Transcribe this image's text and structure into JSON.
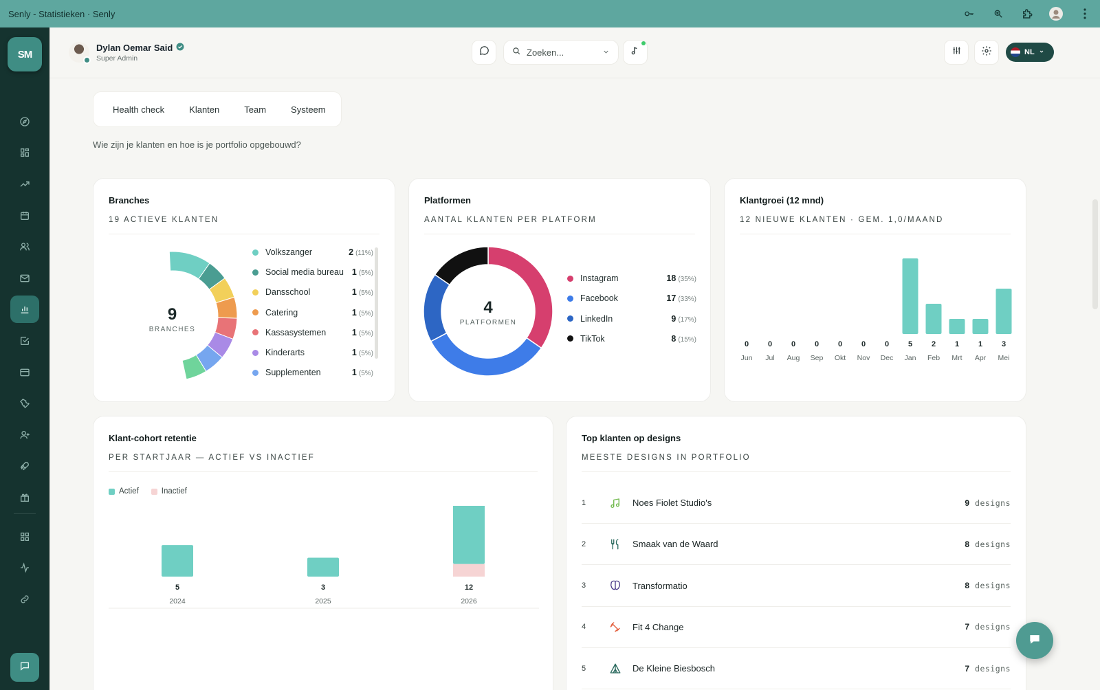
{
  "window": {
    "title": "Senly - Statistieken · Senly"
  },
  "sidebar": {
    "logo": "SM",
    "items": [
      {
        "icon": "compass-icon"
      },
      {
        "icon": "grid-icon"
      },
      {
        "icon": "trending-up-icon"
      },
      {
        "icon": "calendar-icon"
      },
      {
        "icon": "users-icon"
      },
      {
        "icon": "mail-icon"
      },
      {
        "icon": "bar-chart-icon",
        "active": true
      },
      {
        "icon": "check-square-icon"
      },
      {
        "icon": "credit-card-icon"
      },
      {
        "icon": "wrench-icon"
      },
      {
        "icon": "user-plus-icon"
      },
      {
        "icon": "rocket-icon"
      },
      {
        "icon": "gift-icon"
      }
    ],
    "bottom_items": [
      {
        "icon": "apps-icon"
      },
      {
        "icon": "activity-icon"
      },
      {
        "icon": "link-icon"
      }
    ]
  },
  "header": {
    "user_name": "Dylan Oemar Said",
    "user_role": "Super Admin",
    "search_placeholder": "Zoeken...",
    "language": "NL"
  },
  "tabs": [
    "Health check",
    "Klanten",
    "Team",
    "Systeem"
  ],
  "intro": "Wie zijn je klanten en hoe is je portfolio opgebouwd?",
  "branches": {
    "title": "Branches",
    "subtitle": "19 actieve klanten",
    "center_value": "9",
    "center_label": "BRANCHES",
    "items": [
      {
        "label": "Volkszanger",
        "value": "2",
        "pct": "(11%)",
        "color": "#6fcfc3"
      },
      {
        "label": "Social media bureau",
        "value": "1",
        "pct": "(5%)",
        "color": "#4a9d92"
      },
      {
        "label": "Dansschool",
        "value": "1",
        "pct": "(5%)",
        "color": "#f2d05a"
      },
      {
        "label": "Catering",
        "value": "1",
        "pct": "(5%)",
        "color": "#ee9b4e"
      },
      {
        "label": "Kassasystemen",
        "value": "1",
        "pct": "(5%)",
        "color": "#e87377"
      },
      {
        "label": "Kinderarts",
        "value": "1",
        "pct": "(5%)",
        "color": "#a98ae6"
      },
      {
        "label": "Supplementen",
        "value": "1",
        "pct": "(5%)",
        "color": "#76a6ef"
      }
    ]
  },
  "platformen": {
    "title": "Platformen",
    "subtitle": "Aantal klanten per platform",
    "center_value": "4",
    "center_label": "PLATFORMEN",
    "items": [
      {
        "label": "Instagram",
        "value": "18",
        "pct": "(35%)",
        "color": "#d63f6e"
      },
      {
        "label": "Facebook",
        "value": "17",
        "pct": "(33%)",
        "color": "#3e7ce8"
      },
      {
        "label": "LinkedIn",
        "value": "9",
        "pct": "(17%)",
        "color": "#2d66c4"
      },
      {
        "label": "TikTok",
        "value": "8",
        "pct": "(15%)",
        "color": "#111111"
      }
    ]
  },
  "klantgroei": {
    "title": "Klantgroei (12 mnd)",
    "subtitle": "12 nieuwe klanten · gem. 1,0/maand",
    "color": "#6fcfc3",
    "chart_data": {
      "type": "bar",
      "categories": [
        "Jun",
        "Jul",
        "Aug",
        "Sep",
        "Okt",
        "Nov",
        "Dec",
        "Jan",
        "Feb",
        "Mrt",
        "Apr",
        "Mei"
      ],
      "values": [
        0,
        0,
        0,
        0,
        0,
        0,
        0,
        5,
        2,
        1,
        1,
        3
      ],
      "value_labels": [
        "0",
        "0",
        "0",
        "0",
        "0",
        "0",
        "0",
        "5",
        "2",
        "1",
        "1",
        "3"
      ],
      "ylim": [
        0,
        5
      ]
    }
  },
  "cohort": {
    "title": "Klant-cohort retentie",
    "subtitle": "Per startjaar — actief vs inactief",
    "legend": [
      {
        "label": "Actief",
        "color": "#6fcfc3"
      },
      {
        "label": "Inactief",
        "color": "#f6d4d4"
      }
    ],
    "chart_data": {
      "type": "bar",
      "categories": [
        "2024",
        "2025",
        "2026"
      ],
      "series": [
        {
          "name": "Actief",
          "values": [
            5,
            3,
            10
          ]
        },
        {
          "name": "Inactief",
          "values": [
            0,
            0,
            2
          ]
        }
      ],
      "totals": [
        "5",
        "3",
        "12"
      ],
      "ylim": [
        0,
        12
      ]
    }
  },
  "topklanten": {
    "title": "Top klanten op designs",
    "subtitle": "Meeste designs in portfolio",
    "unit": "designs",
    "items": [
      {
        "rank": "1",
        "name": "Noes Fiolet Studio's",
        "count": "9",
        "icon": "music-icon",
        "color": "#6fb84a"
      },
      {
        "rank": "2",
        "name": "Smaak van de Waard",
        "count": "8",
        "icon": "utensils-icon",
        "color": "#2c6b5f"
      },
      {
        "rank": "3",
        "name": "Transformatio",
        "count": "8",
        "icon": "brain-icon",
        "color": "#4b3b8a"
      },
      {
        "rank": "4",
        "name": "Fit 4 Change",
        "count": "7",
        "icon": "dumbbell-icon",
        "color": "#e3603f"
      },
      {
        "rank": "5",
        "name": "De Kleine Biesbosch",
        "count": "7",
        "icon": "tent-icon",
        "color": "#2c6b5f"
      }
    ]
  }
}
